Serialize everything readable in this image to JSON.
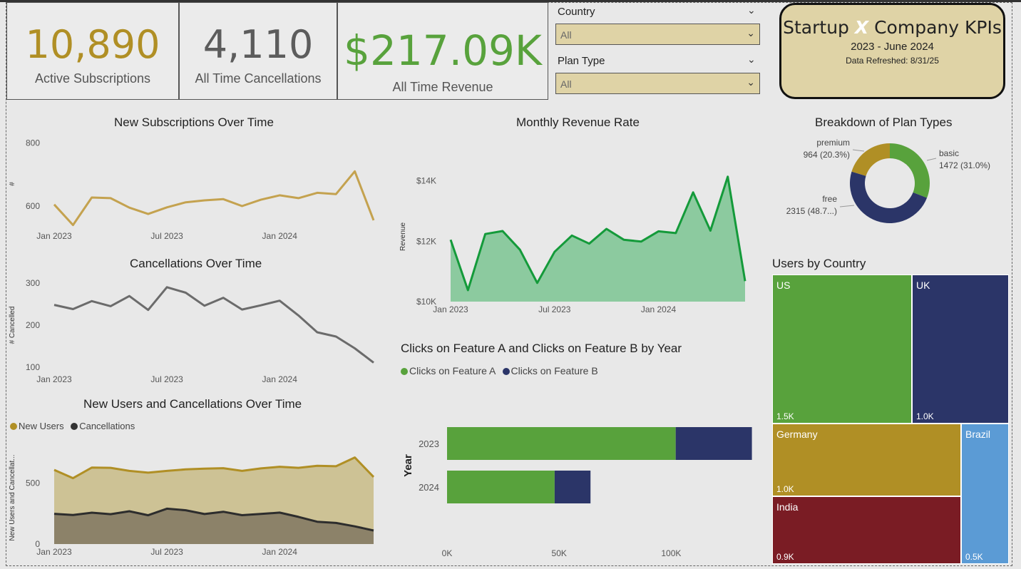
{
  "kpis": [
    {
      "value": "10,890",
      "label": "Active Subscriptions",
      "color": "#b08f25"
    },
    {
      "value": "4,110",
      "label": "All Time Cancellations",
      "color": "#5c5c5c"
    },
    {
      "value": "$217.09K",
      "label": "All Time Revenue",
      "color": "#58a23c"
    }
  ],
  "filters": {
    "country_label": "Country",
    "country_value": "All",
    "plan_label": "Plan Type",
    "plan_value": "All"
  },
  "title_card": {
    "prefix": "Startup ",
    "x": "X",
    "suffix": " Company KPIs",
    "period": "2023 - June 2024",
    "refreshed": "Data Refreshed: 8/31/25"
  },
  "icons": {
    "dropdown": "chevron-down-icon"
  },
  "colors": {
    "gold": "#b08f25",
    "green": "#58a23c",
    "navy": "#2b3568",
    "gray": "#5c5c5c",
    "maroon": "#7a1c24",
    "blue": "#5b9bd5"
  },
  "chart_data": [
    {
      "id": "new_subs",
      "type": "line",
      "title": "New Subscriptions Over Time",
      "xlabel": "",
      "ylabel": "#",
      "x_ticks": [
        "Jan 2023",
        "Jul 2023",
        "Jan 2024"
      ],
      "y_ticks": [
        600,
        800
      ],
      "ylim": [
        530,
        810
      ],
      "series": [
        {
          "values": [
            605,
            540,
            627,
            625,
            595,
            575,
            596,
            612,
            618,
            622,
            600,
            620,
            634,
            625,
            642,
            638,
            710,
            555
          ]
        }
      ]
    },
    {
      "id": "cancellations",
      "type": "line",
      "title": "Cancellations Over Time",
      "xlabel": "",
      "ylabel": "# Cancelled",
      "x_ticks": [
        "Jan 2023",
        "Jul 2023",
        "Jan 2024"
      ],
      "y_ticks": [
        100,
        200,
        300
      ],
      "ylim": [
        90,
        310
      ],
      "series": [
        {
          "values": [
            248,
            238,
            257,
            245,
            269,
            236,
            290,
            277,
            246,
            265,
            237,
            247,
            258,
            223,
            183,
            173,
            145,
            111
          ]
        }
      ]
    },
    {
      "id": "users_vs_cancel",
      "type": "area",
      "title": "New Users and Cancellations Over Time",
      "xlabel": "",
      "ylabel": "New Users and Cancellat...",
      "x_ticks": [
        "Jan 2023",
        "Jul 2023",
        "Jan 2024"
      ],
      "y_ticks": [
        0,
        500
      ],
      "ylim": [
        0,
        760
      ],
      "series": [
        {
          "name": "New Users",
          "values": [
            608,
            540,
            627,
            625,
            600,
            585,
            600,
            612,
            618,
            622,
            600,
            620,
            634,
            625,
            642,
            638,
            710,
            550
          ]
        },
        {
          "name": "Cancellations",
          "values": [
            248,
            238,
            257,
            245,
            269,
            236,
            290,
            277,
            246,
            265,
            237,
            247,
            258,
            223,
            183,
            173,
            145,
            111
          ]
        }
      ]
    },
    {
      "id": "revenue",
      "type": "area",
      "title": "Monthly Revenue Rate",
      "xlabel": "",
      "ylabel": "Revenue",
      "x_ticks": [
        "Jan 2023",
        "Jul 2023",
        "Jan 2024"
      ],
      "y_ticks": [
        "$10K",
        "$12K",
        "$14K"
      ],
      "ylim": [
        10000,
        14300
      ],
      "series": [
        {
          "values": [
            12050,
            10380,
            12240,
            12340,
            11720,
            10620,
            11650,
            12190,
            11920,
            12410,
            12050,
            11990,
            12330,
            12270,
            13620,
            12350,
            14140,
            10680
          ]
        }
      ]
    },
    {
      "id": "clicks",
      "type": "bar",
      "orientation": "horizontal",
      "stacked": true,
      "title": "Clicks on Feature A and Clicks on Feature B by Year",
      "ylabel": "Year",
      "categories": [
        "2023",
        "2024"
      ],
      "x_ticks": [
        "0K",
        "50K",
        "100K"
      ],
      "xlim": [
        0,
        135000
      ],
      "series": [
        {
          "name": "Clicks on Feature A",
          "values": [
            102000,
            48000
          ]
        },
        {
          "name": "Clicks on Feature B",
          "values": [
            34000,
            16000
          ]
        }
      ]
    },
    {
      "id": "plan_types",
      "type": "pie",
      "donut": true,
      "title": "Breakdown of Plan Types",
      "slices": [
        {
          "name": "basic",
          "value": 1472,
          "label": "1472 (31.0%)"
        },
        {
          "name": "free",
          "value": 2315,
          "label": "2315 (48.7...)"
        },
        {
          "name": "premium",
          "value": 964,
          "label": "964 (20.3%)"
        }
      ]
    },
    {
      "id": "users_by_country",
      "type": "treemap",
      "title": "Users by Country",
      "items": [
        {
          "name": "US",
          "value": 1500,
          "label": "1.5K"
        },
        {
          "name": "UK",
          "value": 1000,
          "label": "1.0K"
        },
        {
          "name": "Germany",
          "value": 1000,
          "label": "1.0K"
        },
        {
          "name": "India",
          "value": 900,
          "label": "0.9K"
        },
        {
          "name": "Brazil",
          "value": 500,
          "label": "0.5K"
        }
      ]
    }
  ]
}
